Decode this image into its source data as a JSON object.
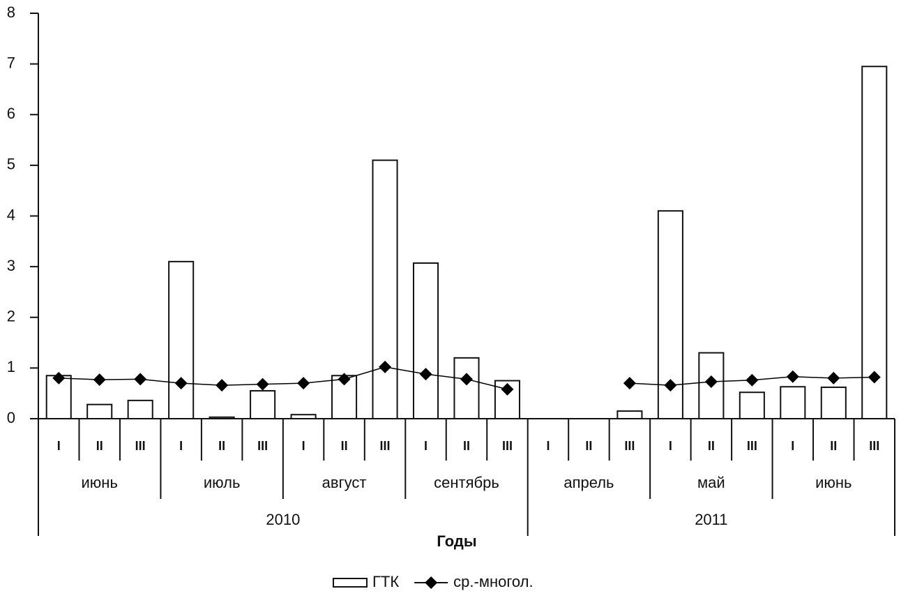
{
  "chart_data": {
    "type": "bar_line",
    "x_title": "Годы",
    "years": [
      {
        "label": "2010",
        "months": [
          {
            "label": "июнь",
            "decades": [
              "I",
              "II",
              "III"
            ]
          },
          {
            "label": "июль",
            "decades": [
              "I",
              "II",
              "III"
            ]
          },
          {
            "label": "август",
            "decades": [
              "I",
              "II",
              "III"
            ]
          },
          {
            "label": "сентябрь",
            "decades": [
              "I",
              "II",
              "III"
            ]
          }
        ]
      },
      {
        "label": "2011",
        "months": [
          {
            "label": "апрель",
            "decades": [
              "I",
              "II",
              "III"
            ]
          },
          {
            "label": "май",
            "decades": [
              "I",
              "II",
              "III"
            ]
          },
          {
            "label": "июнь",
            "decades": [
              "I",
              "II",
              "III"
            ]
          }
        ]
      }
    ],
    "series": [
      {
        "name": "ГТК",
        "type": "bar",
        "color": "#ffffff",
        "values": [
          0.85,
          0.28,
          0.36,
          3.1,
          0.03,
          0.55,
          0.08,
          0.85,
          5.1,
          3.07,
          1.2,
          0.75,
          0,
          0,
          0.15,
          4.1,
          1.3,
          0.52,
          0.63,
          0.62,
          6.95
        ]
      },
      {
        "name": "ср.-многол.",
        "type": "line",
        "color": "#000000",
        "values": [
          0.8,
          0.77,
          0.78,
          0.7,
          0.66,
          0.68,
          0.7,
          0.78,
          1.02,
          0.88,
          0.78,
          0.58,
          null,
          null,
          0.7,
          0.66,
          0.73,
          0.76,
          0.83,
          0.8,
          0.82
        ]
      }
    ],
    "ylim": [
      0,
      8
    ],
    "yticks": [
      0,
      1,
      2,
      3,
      4,
      5,
      6,
      7,
      8
    ]
  }
}
